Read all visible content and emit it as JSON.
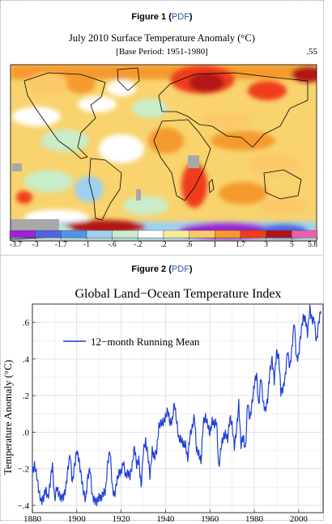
{
  "figure1": {
    "label": "Figure 1",
    "open_paren": "(",
    "link": "PDF",
    "close_paren": ")"
  },
  "figure2": {
    "label": "Figure 2",
    "open_paren": "(",
    "link": "PDF",
    "close_paren": ")"
  },
  "chart_data": [
    {
      "type": "heatmap",
      "title": "July 2010 Surface Temperature Anomaly (°C)",
      "subtitle": "[Base Period: 1951-1980]",
      "global_mean": ".55",
      "legend_ticks": [
        "-3.7",
        "-3",
        "-1.7",
        "-1",
        "-.6",
        "-.2",
        ".2",
        ".6",
        "1",
        "1.7",
        "3",
        "5",
        "5.8"
      ],
      "legend_colors": [
        "#9b22d6",
        "#4f63e6",
        "#4e95e8",
        "#9fd0ef",
        "#c9ecc9",
        "#ffffff",
        "#f8ec9c",
        "#fbc96a",
        "#f59a2d",
        "#ef3c1a",
        "#b31218",
        "#ea60ac"
      ],
      "land_outline_color": "#000000"
    },
    {
      "type": "line",
      "title": "Global Land−Ocean Temperature Index",
      "xlabel": "",
      "ylabel": "Temperature Anomaly (°C)",
      "xlim": [
        1880,
        2011
      ],
      "ylim": [
        -0.44,
        0.7
      ],
      "xticks": [
        1880,
        1900,
        1920,
        1940,
        1960,
        1980,
        2000
      ],
      "xtick_labels": [
        "1880",
        "1900",
        "1920",
        "1940",
        "1960",
        "1980",
        "2000"
      ],
      "yticks": [
        -0.4,
        -0.2,
        0.0,
        0.2,
        0.4,
        0.6
      ],
      "ytick_labels": [
        ".4",
        ".2",
        ".0",
        ".2",
        ".4",
        ".6"
      ],
      "ytick_negative": [
        true,
        true,
        false,
        false,
        false,
        false
      ],
      "grid": true,
      "legend_position": "top-left",
      "series": [
        {
          "name": "12−month Running Mean",
          "color": "#1f3fd6",
          "x": [
            1880,
            1881,
            1882,
            1883,
            1884,
            1885,
            1886,
            1887,
            1888,
            1889,
            1890,
            1891,
            1892,
            1893,
            1894,
            1895,
            1896,
            1897,
            1898,
            1899,
            1900,
            1901,
            1902,
            1903,
            1904,
            1905,
            1906,
            1907,
            1908,
            1909,
            1910,
            1911,
            1912,
            1913,
            1914,
            1915,
            1916,
            1917,
            1918,
            1919,
            1920,
            1921,
            1922,
            1923,
            1924,
            1925,
            1926,
            1927,
            1928,
            1929,
            1930,
            1931,
            1932,
            1933,
            1934,
            1935,
            1936,
            1937,
            1938,
            1939,
            1940,
            1941,
            1942,
            1943,
            1944,
            1945,
            1946,
            1947,
            1948,
            1949,
            1950,
            1951,
            1952,
            1953,
            1954,
            1955,
            1956,
            1957,
            1958,
            1959,
            1960,
            1961,
            1962,
            1963,
            1964,
            1965,
            1966,
            1967,
            1968,
            1969,
            1970,
            1971,
            1972,
            1973,
            1974,
            1975,
            1976,
            1977,
            1978,
            1979,
            1980,
            1981,
            1982,
            1983,
            1984,
            1985,
            1986,
            1987,
            1988,
            1989,
            1990,
            1991,
            1992,
            1993,
            1994,
            1995,
            1996,
            1997,
            1998,
            1999,
            2000,
            2001,
            2002,
            2003,
            2004,
            2005,
            2006,
            2007,
            2008,
            2009,
            2010
          ],
          "values": [
            -0.22,
            -0.18,
            -0.24,
            -0.33,
            -0.38,
            -0.36,
            -0.31,
            -0.36,
            -0.28,
            -0.17,
            -0.37,
            -0.3,
            -0.34,
            -0.36,
            -0.35,
            -0.31,
            -0.2,
            -0.12,
            -0.28,
            -0.18,
            -0.1,
            -0.15,
            -0.24,
            -0.32,
            -0.37,
            -0.24,
            -0.2,
            -0.35,
            -0.37,
            -0.38,
            -0.35,
            -0.36,
            -0.33,
            -0.32,
            -0.16,
            -0.1,
            -0.3,
            -0.35,
            -0.27,
            -0.22,
            -0.22,
            -0.16,
            -0.24,
            -0.22,
            -0.24,
            -0.18,
            -0.08,
            -0.18,
            -0.15,
            -0.3,
            -0.1,
            -0.05,
            -0.12,
            -0.24,
            -0.1,
            -0.14,
            -0.1,
            0.03,
            0.05,
            0.05,
            0.08,
            0.12,
            0.05,
            0.06,
            0.16,
            0.06,
            -0.04,
            -0.04,
            -0.07,
            -0.07,
            -0.15,
            -0.02,
            0.02,
            0.09,
            -0.1,
            -0.12,
            -0.16,
            0.05,
            0.08,
            0.04,
            -0.01,
            0.06,
            0.04,
            0.06,
            -0.2,
            -0.08,
            -0.03,
            -0.01,
            -0.04,
            0.08,
            0.04,
            -0.08,
            0.01,
            0.16,
            -0.07,
            -0.02,
            -0.1,
            0.17,
            0.07,
            0.16,
            0.26,
            0.32,
            0.14,
            0.31,
            0.16,
            0.12,
            0.18,
            0.33,
            0.4,
            0.28,
            0.44,
            0.41,
            0.22,
            0.24,
            0.31,
            0.45,
            0.35,
            0.46,
            0.61,
            0.4,
            0.42,
            0.54,
            0.63,
            0.62,
            0.54,
            0.68,
            0.61,
            0.62,
            0.49,
            0.6,
            0.67
          ]
        }
      ]
    }
  ]
}
